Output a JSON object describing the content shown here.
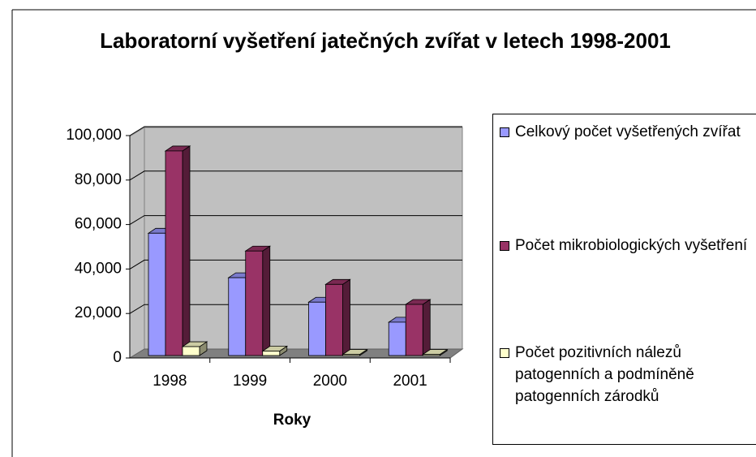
{
  "chart_data": {
    "type": "bar3d",
    "title": "Laboratorní vyšetření jatečných zvířat v letech 1998-2001",
    "x_label": "Roky",
    "categories": [
      "1998",
      "1999",
      "2000",
      "2001"
    ],
    "series": [
      {
        "name": "Celkový počet vyšetřených zvířat",
        "color": "#9999ff",
        "values": [
          55000,
          35000,
          24000,
          15000
        ]
      },
      {
        "name": "Počet mikrobiologických vyšetření",
        "color": "#993366",
        "values": [
          92000,
          47000,
          32000,
          23000
        ]
      },
      {
        "name": "Počet pozitivních nálezů patogenních a podmíněně patogenních zárodků",
        "color": "#ffffcc",
        "values": [
          4000,
          2000,
          500,
          500
        ]
      }
    ],
    "ylim": [
      0,
      100000
    ],
    "yticks": [
      0,
      {
        "value": 20000,
        "label": "20,000"
      },
      {
        "value": 40000,
        "label": "40,000"
      },
      {
        "value": 60000,
        "label": "60,000"
      },
      {
        "value": 80000,
        "label": "80,000"
      },
      {
        "value": 100000,
        "label": "100,000"
      }
    ],
    "grid": true,
    "legend": "right"
  }
}
